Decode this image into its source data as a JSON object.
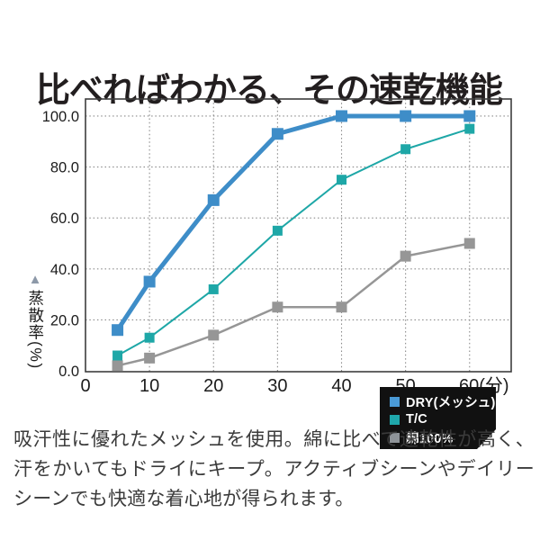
{
  "page": {
    "title": "比べればわかる、その速乾機能"
  },
  "chart_data": {
    "type": "line",
    "x": [
      5,
      10,
      20,
      30,
      40,
      50,
      60
    ],
    "series": [
      {
        "name": "DRY(メッシュ)",
        "values": [
          16,
          35,
          67,
          93,
          100,
          100,
          100
        ],
        "color": "#3e8dc8",
        "swatch": "#4a9ad6",
        "line_width": 5,
        "marker_size": 13
      },
      {
        "name": "T/C",
        "values": [
          6,
          13,
          32,
          55,
          75,
          87,
          95
        ],
        "color": "#1ea7a7",
        "swatch": "#1fa7ab",
        "line_width": 2,
        "marker_size": 11
      },
      {
        "name": "綿100%",
        "values": [
          2,
          5,
          14,
          25,
          25,
          45,
          50
        ],
        "color": "#969696",
        "swatch": "#8e9398",
        "line_width": 2.5,
        "marker_size": 12
      }
    ],
    "x_axis": {
      "ticks": [
        0,
        10,
        20,
        30,
        40,
        50,
        60
      ],
      "labels": [
        "0",
        "10",
        "20",
        "30",
        "40",
        "50",
        "60(分)"
      ]
    },
    "y_axis": {
      "ticks": [
        0,
        20,
        40,
        60,
        80,
        100
      ],
      "labels": [
        "0.0",
        "20.0",
        "40.0",
        "60.0",
        "80.0",
        "100.0"
      ],
      "title": "蒸散率(%)",
      "title_marker": "▲"
    },
    "xlim": [
      0,
      66.5
    ],
    "ylim": [
      0,
      106.7
    ],
    "grid": "dotted",
    "legend_position": "inside-bottom-right",
    "legend_bg": "#111111",
    "legend_text_color": "#ffffff",
    "border_color": "#3d3d3d",
    "grid_color": "#8a8a8a"
  },
  "description": {
    "text": "吸汗性に優れたメッシュを使用。綿に比べて速乾性が高く、汗をかいてもドライにキープ。アクティブシーンやデイリーシーンでも快適な着心地が得られます。"
  }
}
